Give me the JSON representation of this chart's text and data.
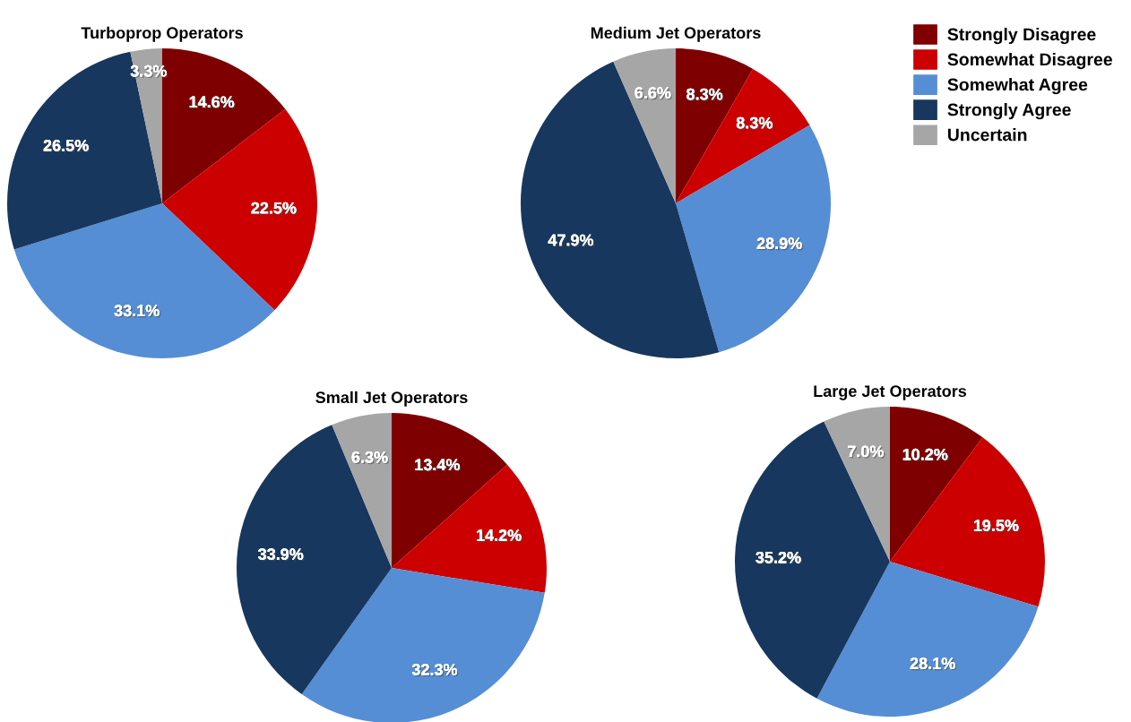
{
  "chart_data": [
    {
      "type": "pie",
      "title": "Turboprop Operators",
      "categories": [
        "Strongly Disagree",
        "Somewhat Disagree",
        "Somewhat Agree",
        "Strongly Agree",
        "Uncertain"
      ],
      "values": [
        14.6,
        22.5,
        33.1,
        26.5,
        3.3
      ],
      "value_labels": [
        "14.6%",
        "22.5%",
        "33.1%",
        "26.5%",
        "3.3%"
      ],
      "colors": [
        "#7f0000",
        "#cc0000",
        "#558ed5",
        "#17375e",
        "#a6a6a6"
      ],
      "legend": "top right"
    },
    {
      "type": "pie",
      "title": "Medium Jet Operators",
      "categories": [
        null,
        null,
        null,
        null,
        null
      ],
      "values": [
        8.3,
        8.3,
        28.9,
        47.9,
        6.6
      ],
      "value_labels": [
        "8.3%",
        "8.3%",
        "28.9%",
        "47.9%",
        "6.6%"
      ],
      "colors": [
        "#7f0000",
        "#cc0000",
        "#558ed5",
        "#17375e",
        "#a6a6a6"
      ]
    },
    {
      "type": "pie",
      "title": "Small Jet Operators",
      "categories": [
        null,
        null,
        null,
        null,
        null
      ],
      "values": [
        13.4,
        14.2,
        32.3,
        33.9,
        6.3
      ],
      "value_labels": [
        "13.4%",
        "14.2%",
        "32.3%",
        "33.9%",
        "6.3%"
      ],
      "colors": [
        "#7f0000",
        "#cc0000",
        "#558ed5",
        "#17375e",
        "#a6a6a6"
      ]
    },
    {
      "type": "pie",
      "title": "Large Jet Operators",
      "categories": [
        null,
        null,
        null,
        null,
        null
      ],
      "values": [
        10.2,
        19.5,
        28.1,
        35.2,
        7.0
      ],
      "value_labels": [
        "10.2%",
        "19.5%",
        "28.1%",
        "35.2%",
        "7.0%"
      ],
      "colors": [
        "#7f0000",
        "#cc0000",
        "#558ed5",
        "#17375e",
        "#a6a6a6"
      ]
    }
  ]
}
